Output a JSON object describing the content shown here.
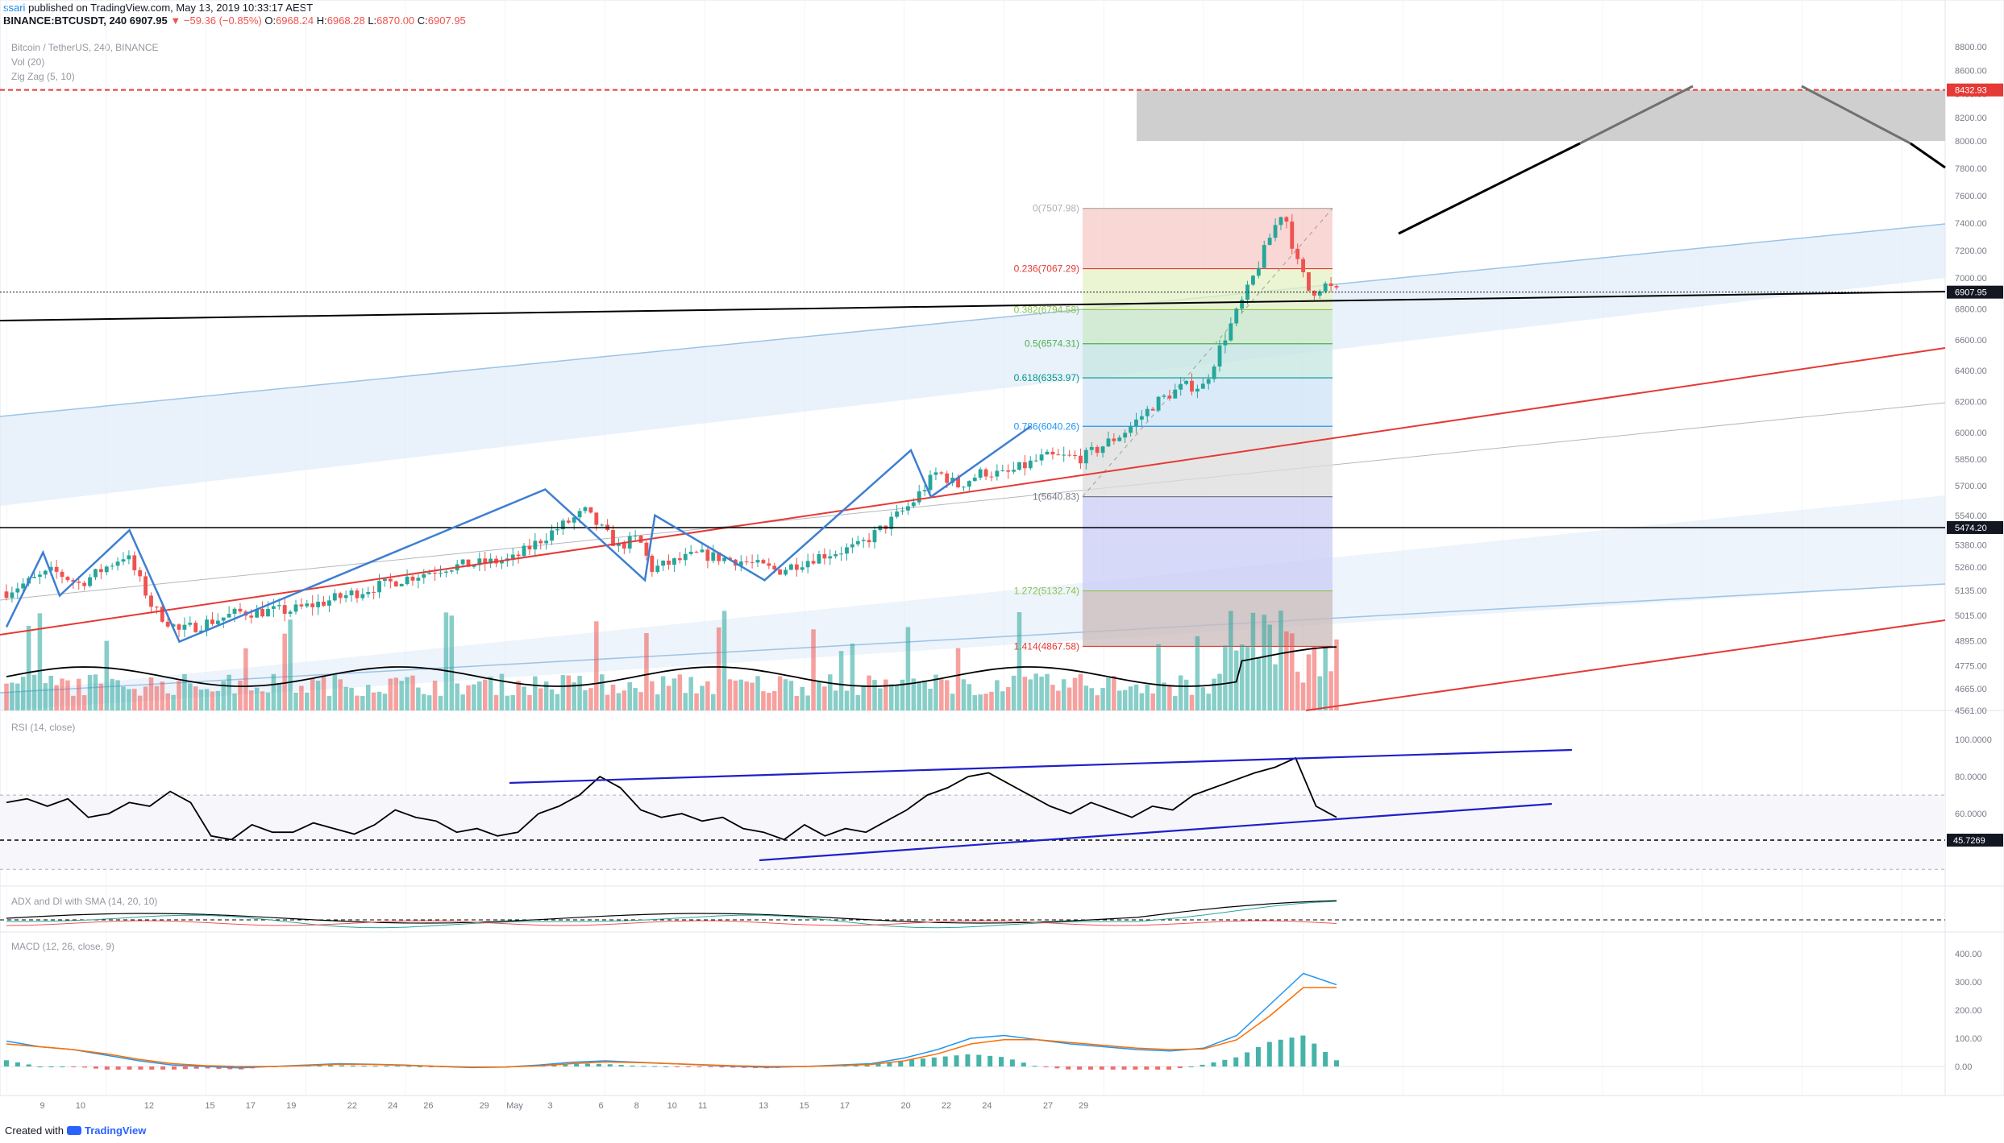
{
  "header": {
    "username": "ssari",
    "published": "published on TradingView.com, May 13, 2019 10:33:17 AEST",
    "symbol": "BINANCE:BTCUSDT, 240",
    "last": "6907.95",
    "change": "▼ −59.36 (−0.85%)",
    "o_label": "O:",
    "o_value": "6968.24",
    "h_label": "H:",
    "h_value": "6968.28",
    "l_label": "L:",
    "l_value": "6870.00",
    "c_label": "C:",
    "c_value": "6907.95"
  },
  "legend": {
    "title": "Bitcoin / TetherUS, 240, BINANCE",
    "vol": "Vol (20)",
    "zigzag": "Zig Zag (5, 10)"
  },
  "indicators": {
    "rsi": "RSI (14, close)",
    "adx": "ADX and DI with SMA (14, 20, 10)",
    "macd": "MACD (12, 26, close, 9)"
  },
  "footer": {
    "created": "Created with",
    "brand": "TradingView"
  },
  "colors": {
    "up": "#26a69a",
    "down": "#ef5350",
    "zigzag": "#3d7fd1",
    "trend_red": "#e53935",
    "channel_blue": "#9dc3e6",
    "rsi_line": "#1f1fc8"
  },
  "chart_data": {
    "type": "candlestick",
    "symbol": "BTCUSDT",
    "timeframe": "240",
    "price_axis": {
      "ticks": [
        "8800.00",
        "8600.00",
        "8400.00",
        "8200.00",
        "8000.00",
        "7800.00",
        "7600.00",
        "7400.00",
        "7200.00",
        "7000.00",
        "6800.00",
        "6600.00",
        "6400.00",
        "6200.00",
        "6000.00",
        "5850.00",
        "5700.00",
        "5540.00",
        "5380.00",
        "5260.00",
        "5135.00",
        "5015.00",
        "4895.00",
        "4775.00",
        "4665.00",
        "4561.00"
      ],
      "badges": [
        "8432.93",
        "6907.95",
        "5474.20"
      ]
    },
    "time_axis": [
      "9",
      "10",
      "12",
      "15",
      "17",
      "19",
      "22",
      "24",
      "26",
      "29",
      "May",
      "3",
      "6",
      "8",
      "10",
      "11",
      "13",
      "15",
      "17",
      "20",
      "22",
      "24",
      "27",
      "29"
    ],
    "price_path": [
      {
        "d": 0,
        "p": 5130
      },
      {
        "d": 0.7,
        "p": 5240
      },
      {
        "d": 1.1,
        "p": 5170
      },
      {
        "d": 1.8,
        "p": 5330
      },
      {
        "d": 2.2,
        "p": 5050
      },
      {
        "d": 2.6,
        "p": 4940
      },
      {
        "d": 3.5,
        "p": 5030
      },
      {
        "d": 4.3,
        "p": 5040
      },
      {
        "d": 5,
        "p": 5100
      },
      {
        "d": 5.6,
        "p": 5160
      },
      {
        "d": 6.6,
        "p": 5260
      },
      {
        "d": 7.6,
        "p": 5300
      },
      {
        "d": 8.2,
        "p": 5450
      },
      {
        "d": 8.7,
        "p": 5560
      },
      {
        "d": 9.2,
        "p": 5370
      },
      {
        "d": 9.5,
        "p": 5420
      },
      {
        "d": 9.7,
        "p": 5250
      },
      {
        "d": 10.4,
        "p": 5330
      },
      {
        "d": 11.1,
        "p": 5290
      },
      {
        "d": 11.6,
        "p": 5240
      },
      {
        "d": 12.2,
        "p": 5320
      },
      {
        "d": 12.8,
        "p": 5370
      },
      {
        "d": 13.2,
        "p": 5480
      },
      {
        "d": 13.6,
        "p": 5600
      },
      {
        "d": 14,
        "p": 5780
      },
      {
        "d": 14.3,
        "p": 5700
      },
      {
        "d": 14.7,
        "p": 5780
      },
      {
        "d": 15,
        "p": 5760
      },
      {
        "d": 15.6,
        "p": 5860
      },
      {
        "d": 16.2,
        "p": 5860
      },
      {
        "d": 16.8,
        "p": 6000
      },
      {
        "d": 17.3,
        "p": 6200
      },
      {
        "d": 17.7,
        "p": 6300
      },
      {
        "d": 18,
        "p": 6300
      },
      {
        "d": 18.3,
        "p": 6600
      },
      {
        "d": 18.7,
        "p": 6950
      },
      {
        "d": 19,
        "p": 7300
      },
      {
        "d": 19.2,
        "p": 7507.98
      },
      {
        "d": 19.4,
        "p": 7120
      },
      {
        "d": 19.6,
        "p": 6900
      },
      {
        "d": 19.8,
        "p": 6960
      },
      {
        "d": 20,
        "p": 6907.95
      }
    ],
    "zigzag": [
      {
        "d": 0,
        "p": 4960
      },
      {
        "d": 0.55,
        "p": 5340
      },
      {
        "d": 0.8,
        "p": 5110
      },
      {
        "d": 1.85,
        "p": 5460
      },
      {
        "d": 2.6,
        "p": 4890
      },
      {
        "d": 8.1,
        "p": 5680
      },
      {
        "d": 9.6,
        "p": 5190
      },
      {
        "d": 9.75,
        "p": 5540
      },
      {
        "d": 11.4,
        "p": 5190
      },
      {
        "d": 13.6,
        "p": 5900
      },
      {
        "d": 13.9,
        "p": 5640
      },
      {
        "d": 15.4,
        "p": 6040.26
      }
    ],
    "fibonacci": [
      {
        "level": "0",
        "price": 7507.98,
        "color": "#b0b0b0"
      },
      {
        "level": "0.236",
        "price": 7067.29,
        "color": "#e53935"
      },
      {
        "level": "0.382",
        "price": 6794.58,
        "color": "#8bc34a"
      },
      {
        "level": "0.5",
        "price": 6574.31,
        "color": "#4caf50"
      },
      {
        "level": "0.618",
        "price": 6353.97,
        "color": "#009688"
      },
      {
        "level": "0.786",
        "price": 6040.26,
        "color": "#2196f3"
      },
      {
        "level": "1",
        "price": 5640.83,
        "color": "#787b86"
      },
      {
        "level": "1.272",
        "price": 5132.74,
        "color": "#8bc34a"
      },
      {
        "level": "1.414",
        "price": 4867.58,
        "color": "#e53935"
      }
    ],
    "horizontal_levels": [
      8432.93,
      6907.95,
      5474.2
    ],
    "target_zone": {
      "from": 8000,
      "to": 8432.93
    },
    "rsi": {
      "axis": [
        "100.0000",
        "80.0000",
        "60.0000",
        "45.7269"
      ],
      "badge": "45.7269",
      "values": [
        66,
        68,
        64,
        68,
        58,
        60,
        66,
        64,
        72,
        66,
        48,
        46,
        54,
        50,
        50,
        55,
        52,
        49,
        54,
        62,
        58,
        56,
        50,
        52,
        48,
        50,
        60,
        64,
        70,
        80,
        74,
        62,
        58,
        60,
        56,
        58,
        52,
        50,
        46,
        54,
        48,
        52,
        50,
        56,
        62,
        70,
        74,
        80,
        82,
        76,
        70,
        64,
        60,
        66,
        62,
        58,
        64,
        62,
        70,
        74,
        78,
        82,
        85,
        90,
        64,
        58
      ]
    },
    "macd": {
      "axis": [
        "400.00",
        "300.00",
        "200.00",
        "100.00",
        "0.00"
      ],
      "macd": [
        90,
        70,
        60,
        40,
        20,
        5,
        0,
        -5,
        0,
        5,
        10,
        8,
        5,
        0,
        -4,
        -2,
        5,
        15,
        20,
        15,
        10,
        5,
        0,
        -3,
        0,
        5,
        10,
        30,
        60,
        100,
        110,
        95,
        80,
        70,
        60,
        55,
        65,
        110,
        220,
        330,
        290
      ],
      "signal": [
        80,
        70,
        60,
        45,
        25,
        10,
        3,
        0,
        0,
        3,
        8,
        7,
        4,
        1,
        -2,
        -2,
        2,
        10,
        16,
        14,
        10,
        6,
        2,
        0,
        0,
        3,
        7,
        20,
        45,
        80,
        95,
        95,
        85,
        75,
        65,
        60,
        62,
        95,
        180,
        280,
        280
      ]
    }
  }
}
